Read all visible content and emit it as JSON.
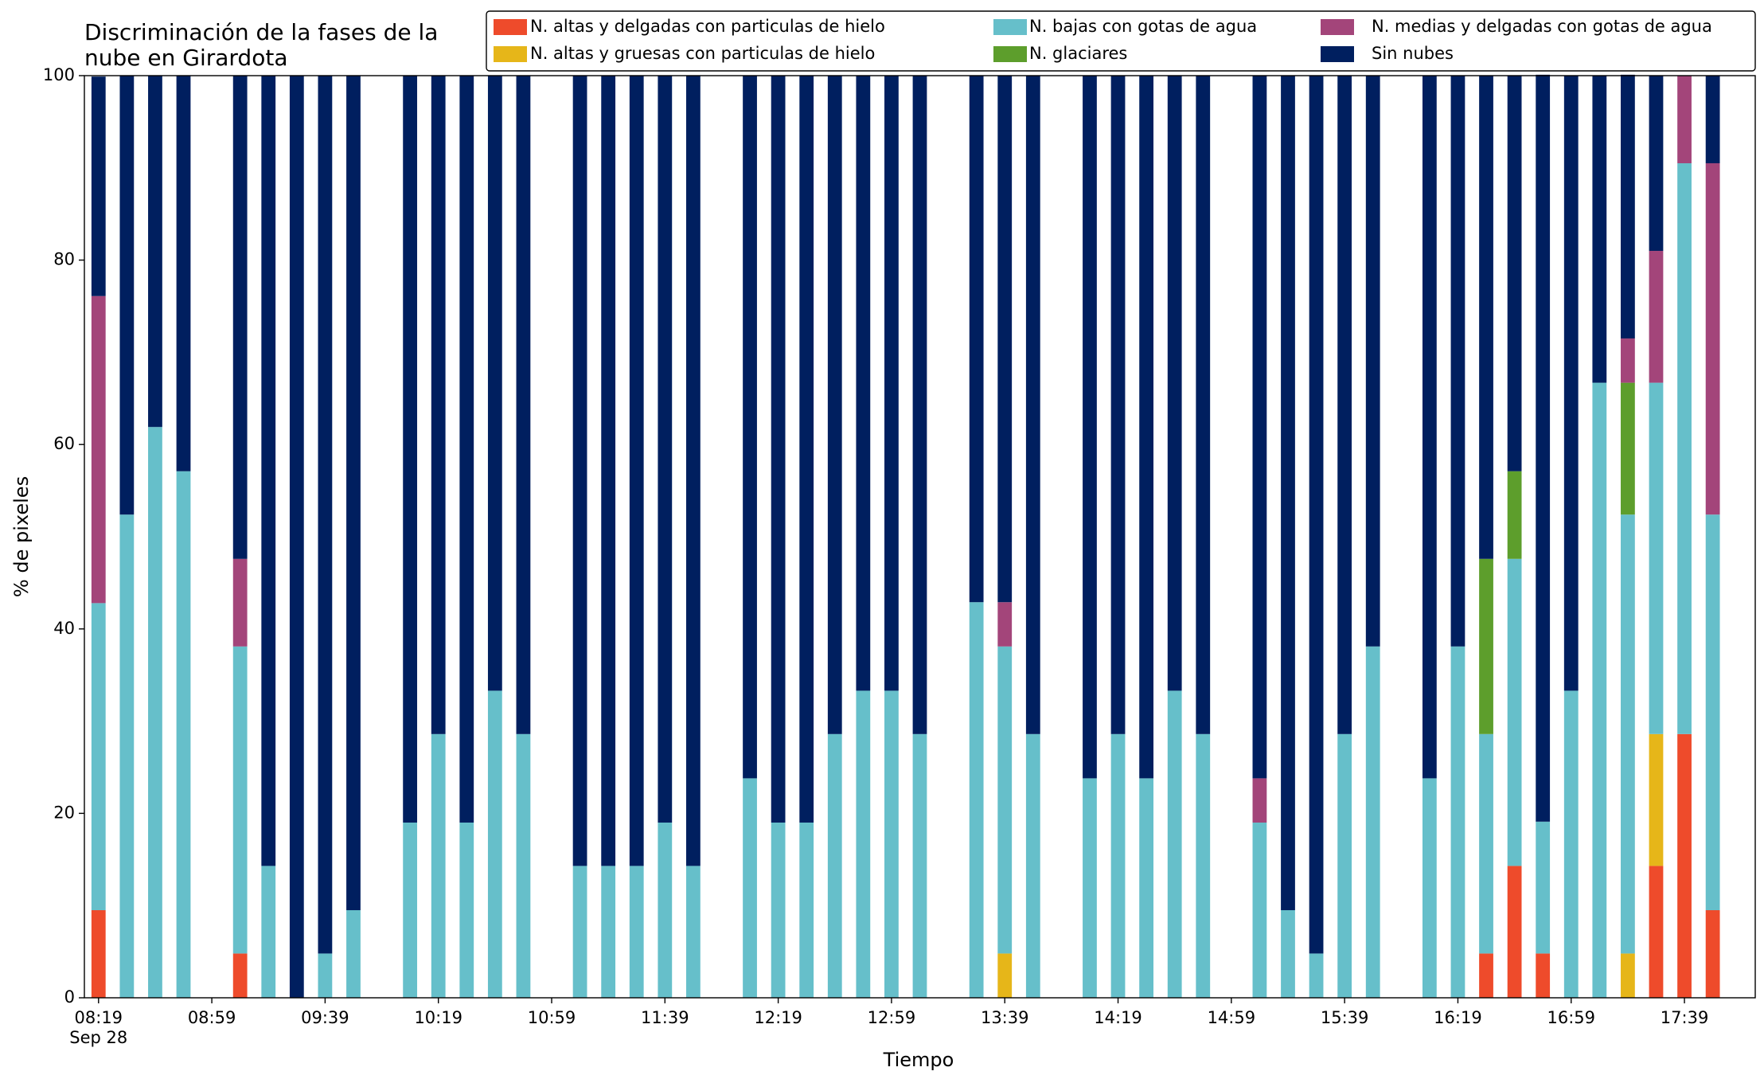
{
  "chart_data": {
    "type": "bar",
    "stacked": true,
    "title": [
      "Discriminación de la fases de la",
      "nube en Girardota"
    ],
    "xlabel": "Tiempo",
    "ylabel": "% de pixeles",
    "date_label": "Sep 28",
    "x": [
      "08:19",
      "08:29",
      "08:39",
      "08:49",
      "09:09",
      "09:19",
      "09:29",
      "09:39",
      "09:49",
      "10:09",
      "10:19",
      "10:29",
      "10:39",
      "10:49",
      "11:09",
      "11:19",
      "11:29",
      "11:39",
      "11:49",
      "12:09",
      "12:19",
      "12:29",
      "12:39",
      "12:49",
      "12:59",
      "13:09",
      "13:29",
      "13:39",
      "13:49",
      "14:09",
      "14:19",
      "14:29",
      "14:39",
      "14:49",
      "15:09",
      "15:19",
      "15:29",
      "15:39",
      "15:49",
      "16:09",
      "16:19",
      "16:29",
      "16:39",
      "16:49",
      "16:59",
      "17:09",
      "17:19",
      "17:29",
      "17:39",
      "17:49"
    ],
    "series": [
      {
        "name": "N. altas y delgadas con particulas de hielo",
        "color": "#ee4b2b",
        "values": [
          9.5,
          0,
          0,
          0,
          4.8,
          0,
          0,
          0,
          0,
          0,
          0,
          0,
          0,
          0,
          0,
          0,
          0,
          0,
          0,
          0,
          0,
          0,
          0,
          0,
          0,
          0,
          0,
          0,
          0,
          0,
          0,
          0,
          0,
          0,
          0,
          0,
          0,
          0,
          0,
          0,
          0,
          4.8,
          14.3,
          4.8,
          0,
          0,
          0,
          14.3,
          28.6,
          9.5
        ]
      },
      {
        "name": "N. altas y gruesas con particulas de hielo",
        "color": "#e6b619",
        "values": [
          0,
          0,
          0,
          0,
          0,
          0,
          0,
          0,
          0,
          0,
          0,
          0,
          0,
          0,
          0,
          0,
          0,
          0,
          0,
          0,
          0,
          0,
          0,
          0,
          0,
          0,
          0,
          4.8,
          0,
          0,
          0,
          0,
          0,
          0,
          0,
          0,
          0,
          0,
          0,
          0,
          0,
          0,
          0,
          0,
          0,
          0,
          4.8,
          14.3,
          0,
          0
        ]
      },
      {
        "name": "N. bajas con gotas de agua",
        "color": "#66bfca",
        "values": [
          33.3,
          52.4,
          61.9,
          57.1,
          33.3,
          14.3,
          0,
          4.8,
          9.5,
          19.0,
          28.6,
          19.0,
          33.3,
          28.6,
          14.3,
          14.3,
          14.3,
          19.0,
          14.3,
          23.8,
          19.0,
          19.0,
          28.6,
          33.3,
          33.3,
          28.6,
          42.9,
          33.3,
          28.6,
          23.8,
          28.6,
          23.8,
          33.3,
          28.6,
          19.0,
          9.5,
          4.8,
          28.6,
          38.1,
          23.8,
          38.1,
          23.8,
          33.3,
          14.3,
          33.3,
          66.7,
          47.6,
          38.1,
          61.9,
          42.9
        ]
      },
      {
        "name": "N. glaciares",
        "color": "#5d9e2c",
        "values": [
          0,
          0,
          0,
          0,
          0,
          0,
          0,
          0,
          0,
          0,
          0,
          0,
          0,
          0,
          0,
          0,
          0,
          0,
          0,
          0,
          0,
          0,
          0,
          0,
          0,
          0,
          0,
          0,
          0,
          0,
          0,
          0,
          0,
          0,
          0,
          0,
          0,
          0,
          0,
          0,
          0,
          19.0,
          9.5,
          0,
          0,
          0,
          14.3,
          0,
          0,
          0
        ]
      },
      {
        "name": "N. medias y delgadas con gotas de agua",
        "color": "#a3457a",
        "values": [
          33.3,
          0,
          0,
          0,
          9.5,
          0,
          0,
          0,
          0,
          0,
          0,
          0,
          0,
          0,
          0,
          0,
          0,
          0,
          0,
          0,
          0,
          0,
          0,
          0,
          0,
          0,
          0,
          4.8,
          0,
          0,
          0,
          0,
          0,
          0,
          4.8,
          0,
          0,
          0,
          0,
          0,
          0,
          0,
          0,
          0,
          0,
          0,
          4.8,
          14.3,
          9.5,
          38.1
        ]
      },
      {
        "name": "Sin nubes",
        "color": "#001f5f",
        "values": [
          23.8,
          47.6,
          38.1,
          42.9,
          52.4,
          85.7,
          100,
          95.2,
          90.5,
          81.0,
          71.4,
          81.0,
          66.7,
          71.4,
          85.7,
          85.7,
          85.7,
          81.0,
          85.7,
          76.2,
          81.0,
          81.0,
          71.4,
          66.7,
          66.7,
          71.4,
          57.1,
          57.1,
          71.4,
          76.2,
          71.4,
          76.2,
          66.7,
          71.4,
          76.2,
          90.5,
          95.2,
          71.4,
          61.9,
          76.2,
          61.9,
          52.4,
          42.9,
          81.0,
          66.7,
          33.3,
          28.6,
          19.0,
          0,
          9.5
        ]
      }
    ],
    "xlim": [
      "08:14",
      "18:04"
    ],
    "xticks": [
      "08:19",
      "08:59",
      "09:39",
      "10:19",
      "10:59",
      "11:39",
      "12:19",
      "12:59",
      "13:39",
      "14:19",
      "14:59",
      "15:39",
      "16:19",
      "16:59",
      "17:39"
    ],
    "ylim": [
      0,
      100
    ],
    "yticks": [
      0,
      20,
      40,
      60,
      80,
      100
    ],
    "grid": false,
    "legend": "top"
  }
}
